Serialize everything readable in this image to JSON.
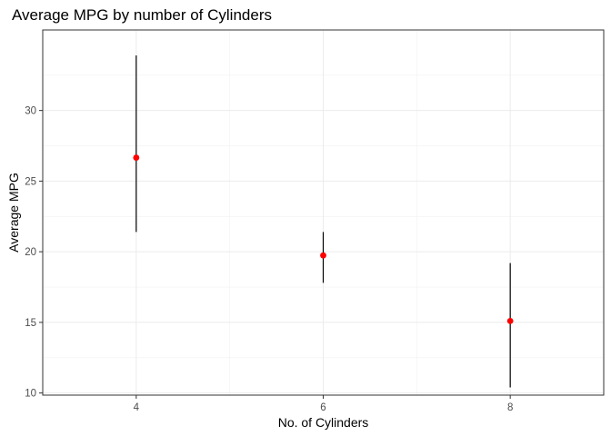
{
  "chart_data": {
    "type": "scatter",
    "title": "Average MPG by number of Cylinders",
    "xlabel": "No. of Cylinders",
    "ylabel": "Average MPG",
    "xlim": [
      3,
      9
    ],
    "ylim": [
      9.85,
      35.7
    ],
    "x_ticks": [
      4,
      6,
      8
    ],
    "y_ticks": [
      10,
      15,
      20,
      25,
      30
    ],
    "grid": true,
    "points": [
      {
        "x": 4,
        "y": 26.66,
        "ymin": 21.4,
        "ymax": 33.9
      },
      {
        "x": 6,
        "y": 19.74,
        "ymin": 17.8,
        "ymax": 21.4
      },
      {
        "x": 8,
        "y": 15.1,
        "ymin": 10.4,
        "ymax": 19.2
      }
    ],
    "point_color": "#ff0000",
    "errorbar_color": "#000000"
  }
}
